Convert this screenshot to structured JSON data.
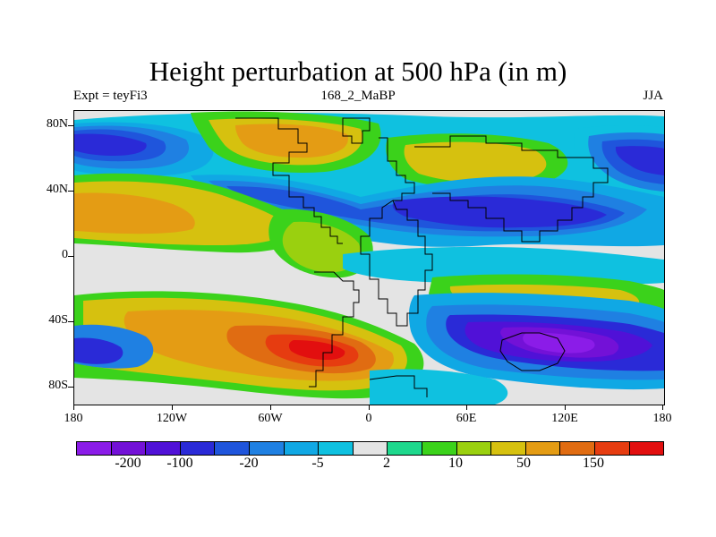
{
  "title": "Height perturbation at 500 hPa (in m)",
  "experiment": "Expt = teyFi3",
  "case_name": "168_2_MaBP",
  "season": "JJA",
  "y_axis_labels": [
    "80N",
    "40N",
    "0",
    "40S",
    "80S"
  ],
  "x_axis_labels": [
    "180",
    "120W",
    "60W",
    "0",
    "60E",
    "120E",
    "180"
  ],
  "colorbar": {
    "colors": [
      "#8b1ce8",
      "#7311d7",
      "#5011d7",
      "#2a2ad7",
      "#1f55dc",
      "#1f80e2",
      "#10a8e4",
      "#0fc1e0",
      "#e4e4e4",
      "#1ed88d",
      "#3bd21b",
      "#9ad00f",
      "#d6c10f",
      "#e49c14",
      "#e06c12",
      "#e63c10",
      "#e20f0f"
    ],
    "labels": [
      "-200",
      "-100",
      "-20",
      "-5",
      "2",
      "10",
      "50",
      "150"
    ]
  },
  "legend_colors": {
    "deep_negative": "#5a11d7",
    "strong_negative": "#2a2ad7",
    "negative": "#1f80e2",
    "weak_negative": "#0fc1e0",
    "neutral": "#e4e4e4",
    "weak_positive": "#3bd21b",
    "positive": "#d6c10f",
    "strong_positive": "#e49c14",
    "max_positive": "#e20f0f"
  }
}
